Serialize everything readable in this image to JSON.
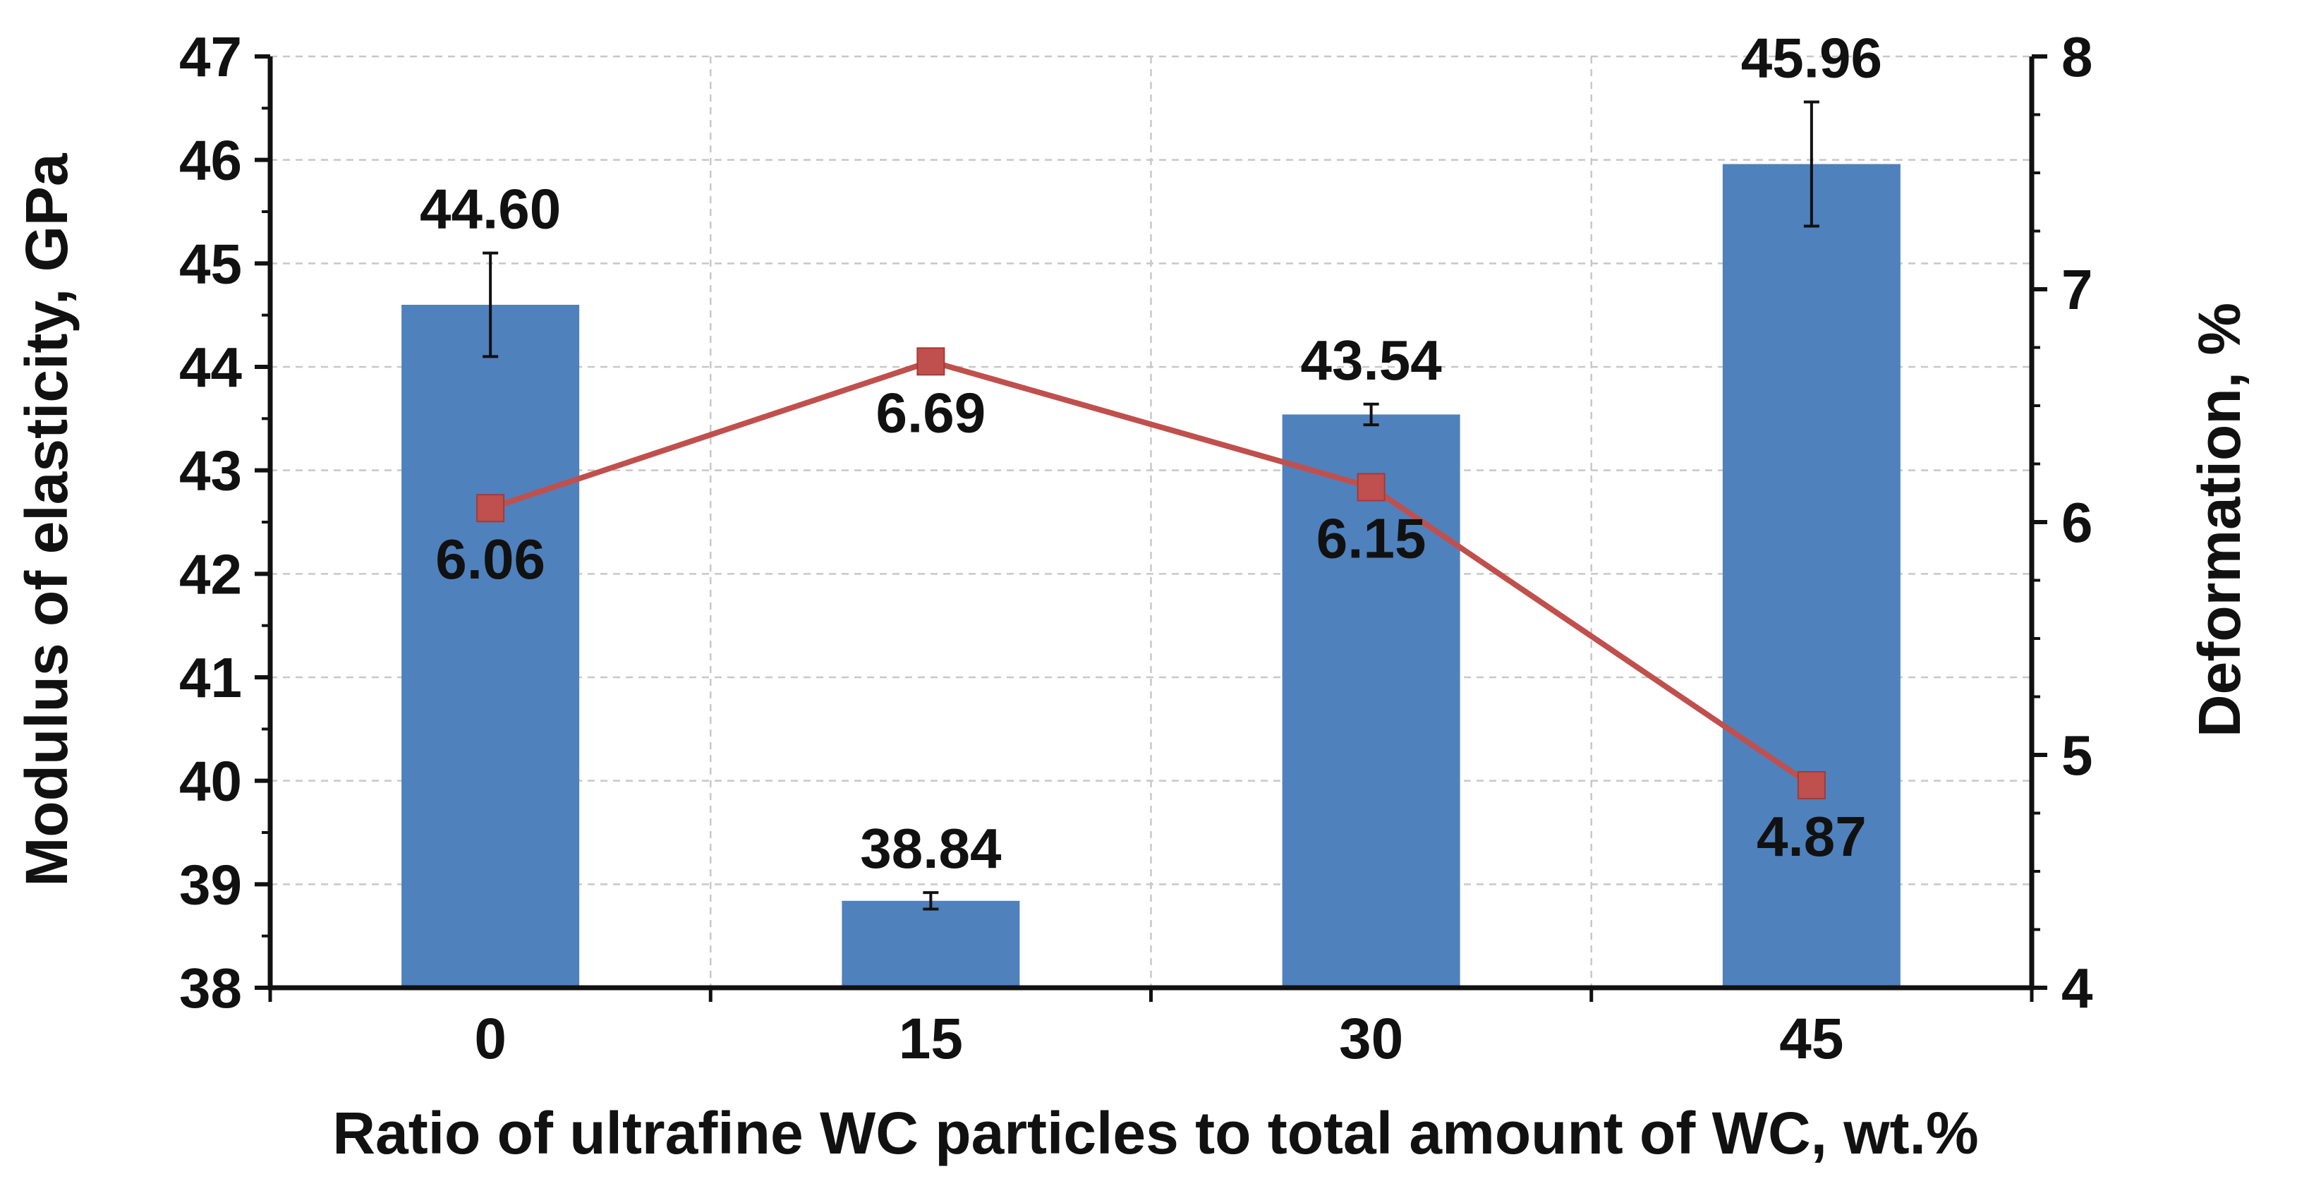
{
  "chart_data": {
    "type": "bar",
    "categories": [
      "0",
      "15",
      "30",
      "45"
    ],
    "xlabel": "Ratio of ultrafine WC particles to total amount of WC, wt.%",
    "ylabel": "Modulus of elasticity, GPa",
    "y2label": "Deformation, %",
    "ylim": [
      38,
      47
    ],
    "y2lim": [
      4,
      8
    ],
    "yticks": [
      38,
      39,
      40,
      41,
      42,
      43,
      44,
      45,
      46,
      47
    ],
    "y2ticks": [
      4,
      5,
      6,
      7,
      8
    ],
    "grid": true,
    "series": [
      {
        "type": "bar",
        "axis": "left",
        "values": [
          44.6,
          38.84,
          43.54,
          45.96
        ],
        "errors": [
          0.5,
          0.08,
          0.1,
          0.6
        ],
        "labels": [
          "44.60",
          "38.84",
          "43.54",
          "45.96"
        ],
        "color": "#4f81bd"
      },
      {
        "type": "line",
        "axis": "right",
        "values": [
          6.06,
          6.69,
          6.15,
          4.87
        ],
        "labels": [
          "6.06",
          "6.69",
          "6.15",
          "4.87"
        ],
        "color": "#c0504d"
      }
    ]
  }
}
